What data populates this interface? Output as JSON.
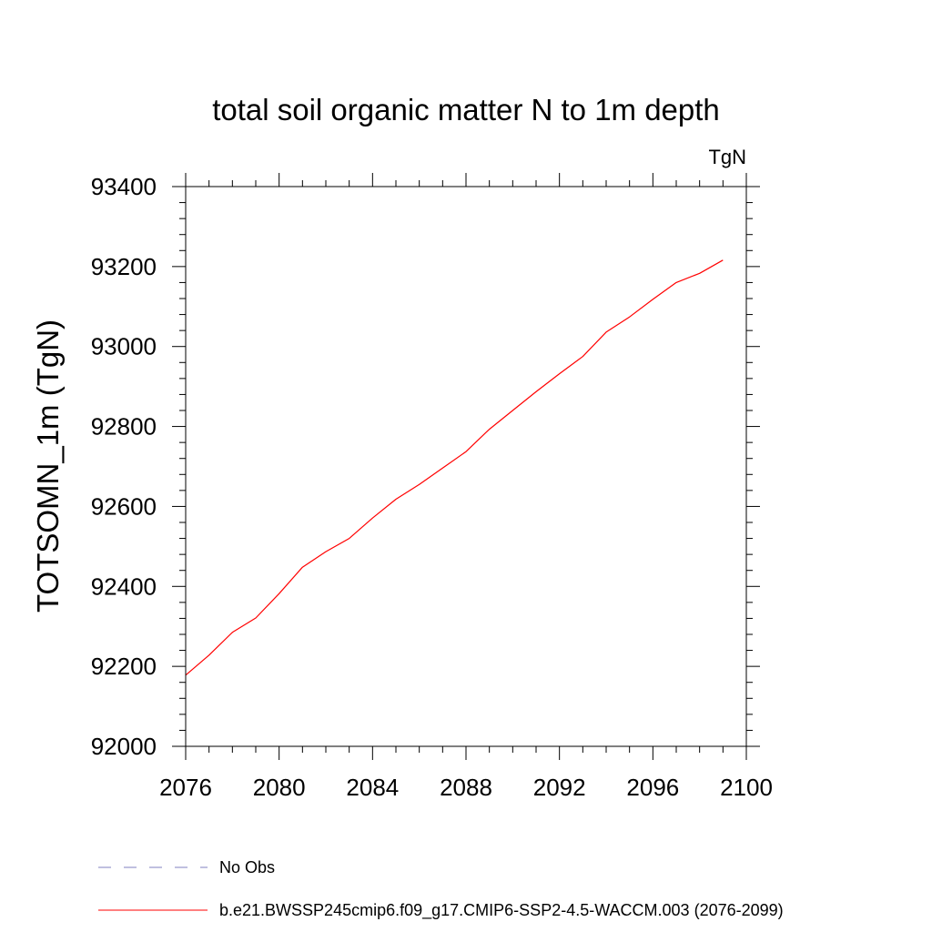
{
  "chart_data": {
    "type": "line",
    "title": "total soil organic matter N to 1m depth",
    "units": "TgN",
    "ylabel": "TOTSOMN_1m  (TgN)",
    "xlabel": "",
    "xlim": [
      2076,
      2100
    ],
    "ylim": [
      92000,
      93400
    ],
    "xticks": [
      2076,
      2080,
      2084,
      2088,
      2092,
      2096,
      2100
    ],
    "yticks": [
      92000,
      92200,
      92400,
      92600,
      92800,
      93000,
      93200,
      93400
    ],
    "series": [
      {
        "name": "b.e21.BWSSP245cmip6.f09_g17.CMIP6-SSP2-4.5-WACCM.003 (2076-2099)",
        "color": "#ff0000",
        "style": "solid",
        "x": [
          2076,
          2077,
          2078,
          2079,
          2080,
          2081,
          2082,
          2083,
          2084,
          2085,
          2086,
          2087,
          2088,
          2089,
          2090,
          2091,
          2092,
          2093,
          2094,
          2095,
          2096,
          2097,
          2098,
          2099
        ],
        "values": [
          92178,
          92228,
          92285,
          92321,
          92382,
          92448,
          92487,
          92520,
          92571,
          92618,
          92655,
          92696,
          92737,
          92793,
          92840,
          92887,
          92932,
          92975,
          93036,
          93074,
          93118,
          93160,
          93183,
          93216
        ]
      }
    ],
    "legend": [
      {
        "label": "No Obs",
        "color": "#8080c0",
        "style": "dashed"
      },
      {
        "label": "b.e21.BWSSP245cmip6.f09_g17.CMIP6-SSP2-4.5-WACCM.003 (2076-2099)",
        "color": "#ff0000",
        "style": "solid"
      }
    ]
  }
}
